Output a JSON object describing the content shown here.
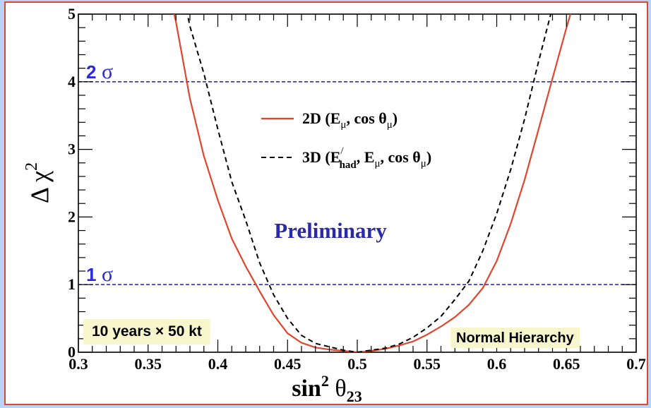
{
  "chart_data": {
    "type": "line",
    "xlabel": {
      "main": "sin",
      "sup": "2",
      "theta": "θ",
      "sub": "23"
    },
    "ylabel": {
      "delta": "Δ",
      "chi": "χ",
      "sup": "2"
    },
    "xlim": [
      0.3,
      0.7
    ],
    "ylim": [
      0,
      5
    ],
    "x_ticks": [
      0.3,
      0.35,
      0.4,
      0.45,
      0.5,
      0.55,
      0.6,
      0.65,
      0.7
    ],
    "x_tick_labels": [
      "0.3",
      "0.35",
      "0.4",
      "0.45",
      "0.5",
      "0.55",
      "0.6",
      "0.65",
      "0.7"
    ],
    "y_ticks": [
      0,
      1,
      2,
      3,
      4,
      5
    ],
    "y_tick_labels": [
      "0",
      "1",
      "2",
      "3",
      "4",
      "5"
    ],
    "reference_lines": [
      {
        "y": 1,
        "label_num": "1",
        "label_sym": "σ",
        "color": "#2b2bdc"
      },
      {
        "y": 4,
        "label_num": "2",
        "label_sym": "σ",
        "color": "#2b2bdc"
      }
    ],
    "series": [
      {
        "style": "solid",
        "color": "#e2452c",
        "x": [
          0.36,
          0.37,
          0.38,
          0.39,
          0.4,
          0.41,
          0.42,
          0.43,
          0.44,
          0.45,
          0.46,
          0.47,
          0.48,
          0.49,
          0.5,
          0.51,
          0.52,
          0.53,
          0.54,
          0.55,
          0.56,
          0.57,
          0.58,
          0.59,
          0.6,
          0.61,
          0.62,
          0.63,
          0.64,
          0.65,
          0.66
        ],
        "y": [
          5.8,
          4.88,
          3.75,
          2.9,
          2.25,
          1.68,
          1.27,
          0.9,
          0.55,
          0.28,
          0.14,
          0.07,
          0.04,
          0.02,
          0.0,
          0.02,
          0.05,
          0.1,
          0.16,
          0.26,
          0.38,
          0.52,
          0.7,
          0.95,
          1.35,
          1.9,
          2.55,
          3.3,
          4.05,
          4.8,
          5.5
        ]
      },
      {
        "style": "dashed",
        "color": "#000000",
        "x": [
          0.37,
          0.38,
          0.39,
          0.4,
          0.41,
          0.42,
          0.43,
          0.44,
          0.45,
          0.46,
          0.47,
          0.48,
          0.49,
          0.5,
          0.51,
          0.52,
          0.53,
          0.54,
          0.55,
          0.56,
          0.57,
          0.58,
          0.59,
          0.6,
          0.61,
          0.62,
          0.63,
          0.64
        ],
        "y": [
          5.8,
          4.82,
          4.12,
          3.3,
          2.52,
          1.95,
          1.32,
          0.85,
          0.5,
          0.25,
          0.13,
          0.08,
          0.03,
          0.0,
          0.03,
          0.06,
          0.12,
          0.22,
          0.36,
          0.53,
          0.78,
          1.05,
          1.5,
          2.05,
          2.7,
          3.45,
          4.3,
          5.1
        ]
      }
    ],
    "legend": [
      {
        "main": "2D (E",
        "sub": "μ",
        "mid": ", cos θ",
        "sub2": "μ",
        "end": ")"
      },
      {
        "main": "3D (E",
        "sup": "/",
        "sub": "had",
        "mid": ", E",
        "sub2": "μ",
        "mid2": ", cos θ",
        "sub3": "μ",
        "end": ")"
      }
    ],
    "annotations": {
      "preliminary": "Preliminary",
      "exposure": "10 years × 50 kt",
      "hierarchy": "Normal Hierarchy"
    }
  }
}
